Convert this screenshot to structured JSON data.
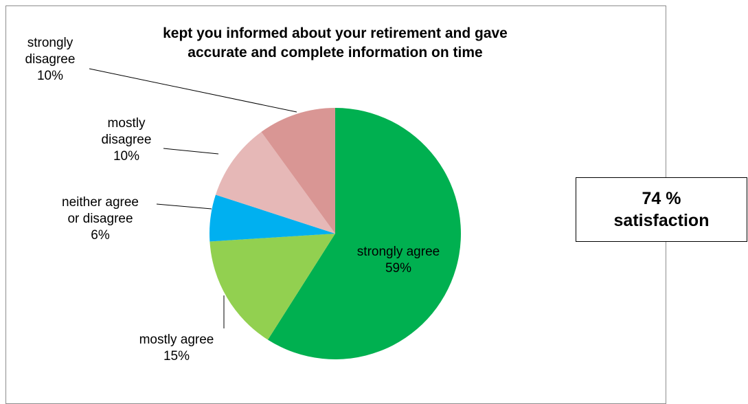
{
  "chart_data": {
    "type": "pie",
    "title_lines": [
      "kept you informed about your retirement and gave",
      "accurate and complete information on time"
    ],
    "slices": [
      {
        "name": "strongly agree",
        "value": 59,
        "label_lines": [
          "strongly agree",
          "59%"
        ],
        "color": "#00B050"
      },
      {
        "name": "mostly agree",
        "value": 15,
        "label_lines": [
          "mostly agree",
          "15%"
        ],
        "color": "#92D050"
      },
      {
        "name": "neither agree or disagree",
        "value": 6,
        "label_lines": [
          "neither agree",
          "or disagree",
          "6%"
        ],
        "color": "#00B0F0"
      },
      {
        "name": "mostly disagree",
        "value": 10,
        "label_lines": [
          "mostly",
          "disagree",
          "10%"
        ],
        "color": "#E6B8B7"
      },
      {
        "name": "strongly disagree",
        "value": 10,
        "label_lines": [
          "strongly",
          "disagree",
          "10%"
        ],
        "color": "#D99694"
      }
    ]
  },
  "callout": {
    "line1": "74 %",
    "line2": "satisfaction"
  }
}
